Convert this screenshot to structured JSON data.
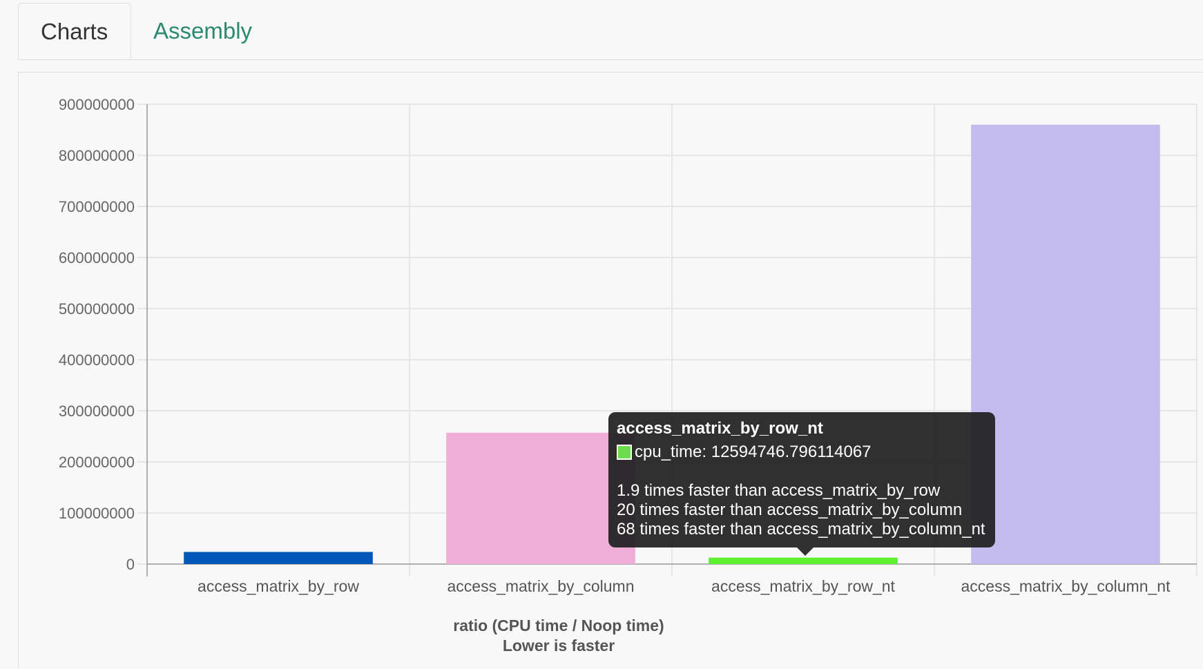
{
  "tabs": [
    {
      "label": "Charts",
      "active": true
    },
    {
      "label": "Assembly",
      "active": false
    }
  ],
  "chart_data": {
    "type": "bar",
    "categories": [
      "access_matrix_by_row",
      "access_matrix_by_column",
      "access_matrix_by_row_nt",
      "access_matrix_by_column_nt"
    ],
    "values": [
      23700000,
      257000000,
      12594746.796114067,
      860000000
    ],
    "colors": [
      "#0057b8",
      "#eeaed6",
      "#5ef02c",
      "#c4bcef"
    ],
    "ylim": [
      0,
      900000000
    ],
    "yticks": [
      "0",
      "100000000",
      "200000000",
      "300000000",
      "400000000",
      "500000000",
      "600000000",
      "700000000",
      "800000000",
      "900000000"
    ],
    "xlabel": "ratio (CPU time / Noop time)",
    "xlabel2": "Lower is faster",
    "grid": true
  },
  "tooltip": {
    "title": "access_matrix_by_row_nt",
    "swatch_color": "#6cdc4e",
    "value_line": "cpu_time: 12594746.796114067",
    "lines": [
      "1.9 times faster than access_matrix_by_row",
      "20 times faster than access_matrix_by_column",
      "68 times faster than access_matrix_by_column_nt"
    ]
  }
}
